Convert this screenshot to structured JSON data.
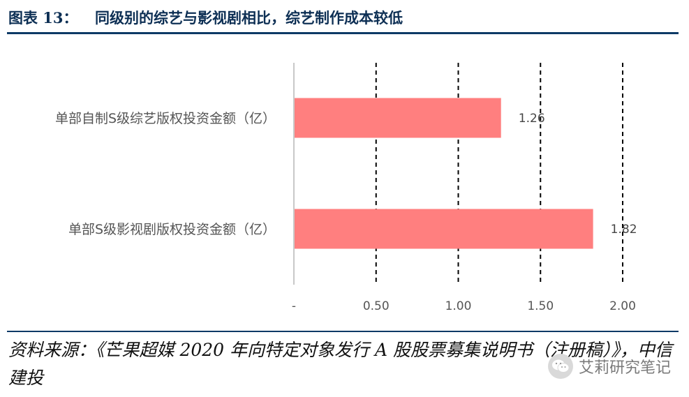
{
  "header": {
    "label": "图表 13：",
    "title": "同级别的综艺与影视剧相比，综艺制作成本较低"
  },
  "chart_data": {
    "type": "bar",
    "orientation": "horizontal",
    "categories": [
      "单部自制S级综艺版权投资金额（亿）",
      "单部S级影视剧版权投资金额（亿）"
    ],
    "values": [
      1.26,
      1.82
    ],
    "value_labels": [
      "1.26",
      "1.82"
    ],
    "xlim": [
      0,
      2
    ],
    "xticks": [
      0,
      0.5,
      1.0,
      1.5,
      2.0
    ],
    "xtick_labels": [
      "-",
      "0.50",
      "1.00",
      "1.50",
      "2.00"
    ],
    "grid": "vertical dashed",
    "bar_color": "#ff7f7f",
    "legend": "none"
  },
  "source": "资料来源：《芒果超媒 2020 年向特定对象发行 A 股股票募集说明书（注册稿）》，中信建投",
  "watermark": {
    "text": "艾莉研究笔记",
    "icon": "wechat-icon"
  }
}
